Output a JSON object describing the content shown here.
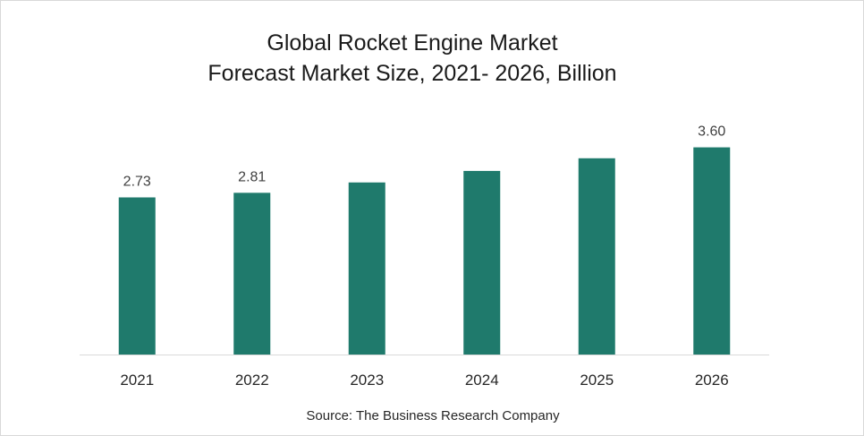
{
  "chart_data": {
    "type": "bar",
    "title_lines": [
      "Global Rocket Engine Market",
      "Forecast Market Size, 2021- 2026, Billion"
    ],
    "categories": [
      "2021",
      "2022",
      "2023",
      "2024",
      "2025",
      "2026"
    ],
    "values": [
      2.73,
      2.81,
      2.99,
      3.19,
      3.41,
      3.6
    ],
    "data_labels": [
      "2.73",
      "2.81",
      "",
      "",
      "",
      "3.60"
    ],
    "xlabel": "",
    "ylabel": "",
    "ylim": [
      0,
      4.2
    ],
    "grid": false,
    "legend": "none",
    "bar_color": "#1f7a6c",
    "source": "Source: The Business Research Company"
  }
}
